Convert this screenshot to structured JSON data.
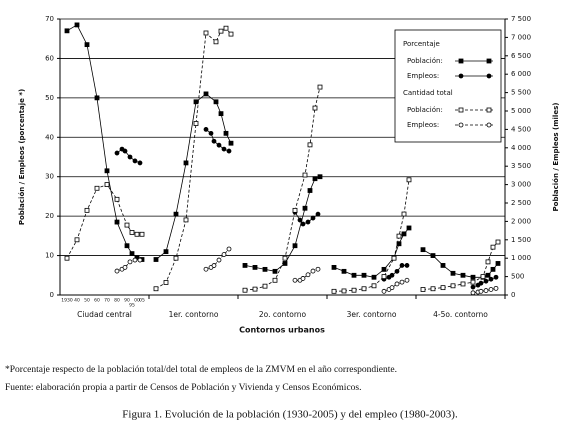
{
  "chart_data": {
    "type": "line",
    "y_label": "Población / Empleos (porcentaje *)",
    "y2_label": "Población / Empleos (miles)",
    "x_label": "Contornos urbanos",
    "categories": [
      "Ciudad central",
      "1er. contorno",
      "2o. contorno",
      "3er. contorno",
      "4-5o. contorno"
    ],
    "xlim": [
      1923,
      2012
    ],
    "xticks": [
      {
        "value": 1930,
        "label": "1930"
      },
      {
        "value": 1940,
        "label": "40"
      },
      {
        "value": 1950,
        "label": "50"
      },
      {
        "value": 1960,
        "label": "60"
      },
      {
        "value": 1970,
        "label": "70"
      },
      {
        "value": 1980,
        "label": "80"
      },
      {
        "value": 1990,
        "label": "90"
      },
      {
        "value": 1995,
        "label": "95"
      },
      {
        "value": 2000,
        "label": "00"
      },
      {
        "value": 2005,
        "label": "05"
      }
    ],
    "ylim": [
      0,
      70
    ],
    "yticks": [
      0,
      10,
      20,
      30,
      40,
      50,
      60,
      70
    ],
    "y2lim": [
      0,
      7500
    ],
    "y2ticks": [
      0,
      500,
      {
        "value": 1000,
        "label": "1 000"
      },
      {
        "value": 1500,
        "label": "1 500"
      },
      {
        "value": 2000,
        "label": "2 000"
      },
      {
        "value": 2500,
        "label": "2 500"
      },
      {
        "value": 3000,
        "label": "3 000"
      },
      {
        "value": 3500,
        "label": "3 500"
      },
      {
        "value": 4000,
        "label": "4 000"
      },
      {
        "value": 4500,
        "label": "4 500"
      },
      {
        "value": 5000,
        "label": "5 000"
      },
      {
        "value": 5500,
        "label": "5 500"
      },
      {
        "value": 6000,
        "label": "6 000"
      },
      {
        "value": 6500,
        "label": "6 500"
      },
      {
        "value": 7000,
        "label": "7 000"
      },
      {
        "value": 7500,
        "label": "7 500"
      }
    ],
    "grid": true,
    "legend": "upper right",
    "series_groups": [
      {
        "title": "Porcentaje",
        "series": [
          {
            "name": "Población:",
            "color": "#000000",
            "marker": "square",
            "filled": true,
            "dashed": false,
            "axis": "y",
            "x": [
              1930,
              1940,
              1950,
              1960,
              1970,
              1980,
              1990,
              1995,
              2000,
              2005
            ],
            "values": [
              [
                67,
                68.5,
                63.5,
                50,
                31.5,
                18.5,
                12.5,
                10.5,
                9.5,
                9
              ],
              [
                9,
                11,
                20.5,
                33.5,
                49,
                51,
                49,
                46,
                41,
                38.5
              ],
              [
                7.5,
                7,
                6.5,
                6,
                8,
                12.5,
                22,
                26.5,
                29.5,
                30
              ],
              [
                7,
                6,
                5,
                5,
                4.5,
                6.5,
                9.5,
                13,
                15.5,
                17
              ],
              [
                11.5,
                10,
                7.5,
                5.5,
                5,
                4.5,
                4.5,
                5,
                6.5,
                8
              ]
            ]
          },
          {
            "name": "Empleos:",
            "color": "#000000",
            "marker": "circle",
            "filled": true,
            "dashed": false,
            "axis": "y",
            "x": [
              1980,
              1985,
              1988,
              1993,
              1998,
              2003
            ],
            "values": [
              [
                36,
                37,
                36.5,
                35,
                34,
                33.5
              ],
              [
                42,
                41,
                39,
                38,
                37,
                36.5
              ],
              [
                21,
                19,
                18,
                18.5,
                19.5,
                20.5
              ],
              [
                4,
                4.5,
                5,
                6,
                7.5,
                7.5
              ],
              [
                2,
                2.5,
                3,
                3.5,
                4,
                4.5
              ]
            ]
          }
        ]
      },
      {
        "title": "Cantidad total",
        "series": [
          {
            "name": "Población:",
            "color": "#000000",
            "marker": "square",
            "filled": false,
            "dashed": true,
            "axis": "y2",
            "x": [
              1930,
              1940,
              1950,
              1960,
              1970,
              1980,
              1990,
              1995,
              2000,
              2005
            ],
            "values": [
              [
                1000,
                1500,
                2300,
                2900,
                3000,
                2600,
                1900,
                1700,
                1650,
                1650
              ],
              [
                170,
                340,
                1000,
                2040,
                4660,
                7120,
                6880,
                7170,
                7250,
                7090
              ],
              [
                130,
                160,
                240,
                400,
                1000,
                2300,
                3260,
                4080,
                5080,
                5650
              ],
              [
                100,
                110,
                130,
                170,
                250,
                500,
                1000,
                1600,
                2200,
                3130
              ],
              [
                150,
                170,
                200,
                250,
                300,
                350,
                500,
                900,
                1300,
                1440
              ]
            ]
          },
          {
            "name": "Empleos:",
            "color": "#000000",
            "marker": "circle",
            "filled": false,
            "dashed": true,
            "axis": "y2",
            "x": [
              1980,
              1985,
              1988,
              1993,
              1998,
              2003
            ],
            "values": [
              [
                650,
                700,
                750,
                900,
                950,
                950
              ],
              [
                700,
                750,
                800,
                950,
                1100,
                1250
              ],
              [
                400,
                400,
                450,
                550,
                650,
                700
              ],
              [
                100,
                150,
                200,
                300,
                350,
                400
              ],
              [
                60,
                80,
                100,
                120,
                150,
                180
              ]
            ]
          }
        ]
      }
    ]
  },
  "footnotes": [
    "*Porcentaje respecto de la población total/del total de empleos de la ZMVM en el año correspondiente.",
    "Fuente: elaboración propia a partir de Censos de Población y Vivienda y Censos Económicos."
  ],
  "caption": "Figura 1. Evolución de la población (1930-2005) y del empleo (1980-2003)."
}
